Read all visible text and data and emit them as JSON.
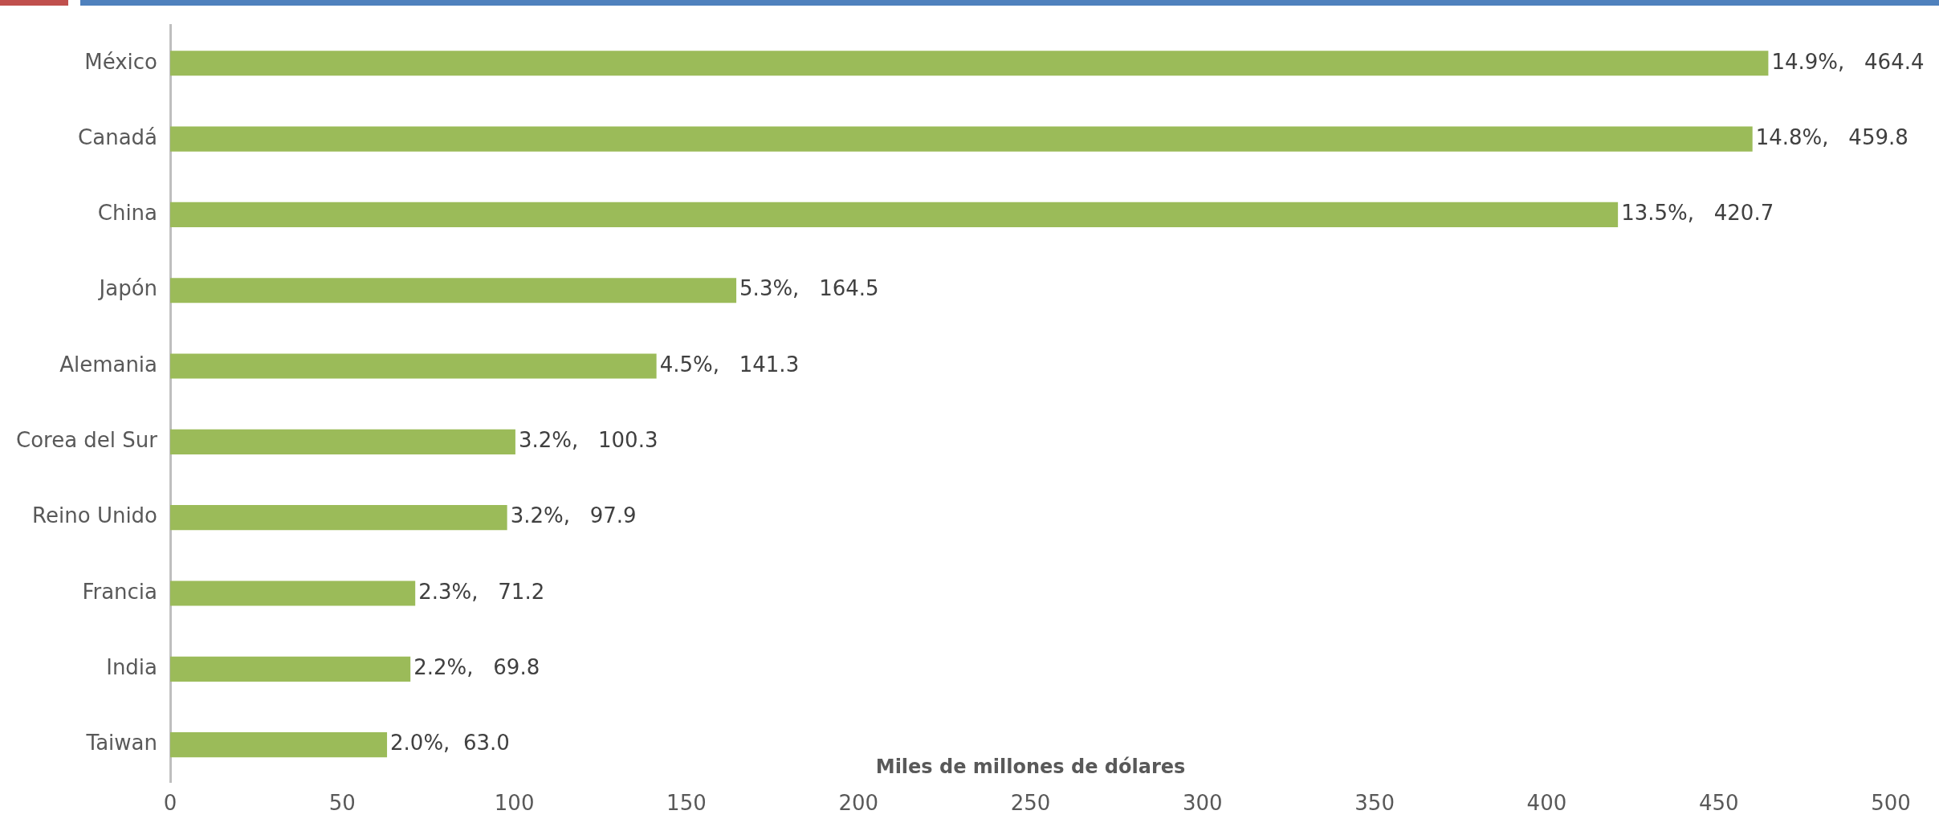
{
  "chart_data": {
    "type": "bar",
    "orientation": "horizontal",
    "xlabel": "Miles de millones de dólares",
    "categories": [
      "México",
      "Canadá",
      "China",
      "Japón",
      "Alemania",
      "Corea del Sur",
      "Reino Unido",
      "Francia",
      "India",
      "Taiwan"
    ],
    "values": [
      464.4,
      459.8,
      420.7,
      164.5,
      141.3,
      100.3,
      97.9,
      71.2,
      69.8,
      63.0
    ],
    "value_labels": [
      "14.9%,   464.4",
      "14.8%,   459.8",
      "13.5%,   420.7",
      "5.3%,   164.5",
      "4.5%,   141.3",
      "3.2%,   100.3",
      "3.2%,   97.9",
      "2.3%,   71.2",
      "2.2%,   69.8",
      "2.0%,  63.0"
    ],
    "color": "#9bbb59",
    "xlim": [
      0,
      500
    ],
    "xticks": [
      0,
      50,
      100,
      150,
      200,
      250,
      300,
      350,
      400,
      450,
      500
    ],
    "grid": false,
    "legend": false
  }
}
